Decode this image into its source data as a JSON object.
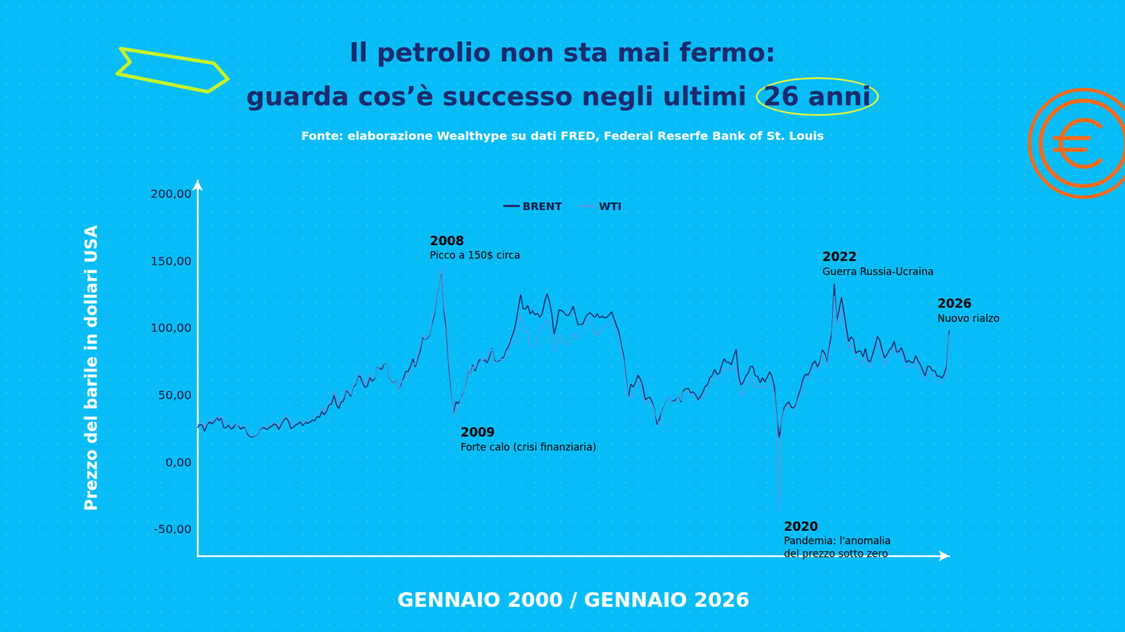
{
  "chart_data": {
    "type": "line",
    "title": [
      "Il petrolio non sta mai fermo:",
      "guarda cos’è successo negli ultimi 26 anni"
    ],
    "subtitle": "Fonte: elaborazione Wealthype su dati FRED, Federal Reserfe Bank of St. Louis",
    "x_label": "GENNAIO 2000 / GENNAIO 2026",
    "y_label": "Prezzo del barile in dollari USA",
    "x": [
      "2000-01",
      "2000-02",
      "2000-03",
      "2000-04",
      "2000-05",
      "2000-06",
      "2000-07",
      "2000-08",
      "2000-09",
      "2000-10",
      "2000-11",
      "2000-12",
      "2001-01",
      "2001-02",
      "2001-03",
      "2001-04",
      "2001-05",
      "2001-06",
      "2001-07",
      "2001-08",
      "2001-09",
      "2001-10",
      "2001-11",
      "2001-12",
      "2002-01",
      "2002-02",
      "2002-03",
      "2002-04",
      "2002-05",
      "2002-06",
      "2002-07",
      "2002-08",
      "2002-09",
      "2002-10",
      "2002-11",
      "2002-12",
      "2003-01",
      "2003-02",
      "2003-03",
      "2003-04",
      "2003-05",
      "2003-06",
      "2003-07",
      "2003-08",
      "2003-09",
      "2003-10",
      "2003-11",
      "2003-12",
      "2004-01",
      "2004-02",
      "2004-03",
      "2004-04",
      "2004-05",
      "2004-06",
      "2004-07",
      "2004-08",
      "2004-09",
      "2004-10",
      "2004-11",
      "2004-12",
      "2005-01",
      "2005-02",
      "2005-03",
      "2005-04",
      "2005-05",
      "2005-06",
      "2005-07",
      "2005-08",
      "2005-09",
      "2005-10",
      "2005-11",
      "2005-12",
      "2006-01",
      "2006-02",
      "2006-03",
      "2006-04",
      "2006-05",
      "2006-06",
      "2006-07",
      "2006-08",
      "2006-09",
      "2006-10",
      "2006-11",
      "2006-12",
      "2007-01",
      "2007-02",
      "2007-03",
      "2007-04",
      "2007-05",
      "2007-06",
      "2007-07",
      "2007-08",
      "2007-09",
      "2007-10",
      "2007-11",
      "2007-12",
      "2008-01",
      "2008-02",
      "2008-03",
      "2008-04",
      "2008-05",
      "2008-06",
      "2008-07",
      "2008-08",
      "2008-09",
      "2008-10",
      "2008-11",
      "2008-12",
      "2009-01",
      "2009-02",
      "2009-03",
      "2009-04",
      "2009-05",
      "2009-06",
      "2009-07",
      "2009-08",
      "2009-09",
      "2009-10",
      "2009-11",
      "2009-12",
      "2010-01",
      "2010-02",
      "2010-03",
      "2010-04",
      "2010-05",
      "2010-06",
      "2010-07",
      "2010-08",
      "2010-09",
      "2010-10",
      "2010-11",
      "2010-12",
      "2011-01",
      "2011-02",
      "2011-03",
      "2011-04",
      "2011-05",
      "2011-06",
      "2011-07",
      "2011-08",
      "2011-09",
      "2011-10",
      "2011-11",
      "2011-12",
      "2012-01",
      "2012-02",
      "2012-03",
      "2012-04",
      "2012-05",
      "2012-06",
      "2012-07",
      "2012-08",
      "2012-09",
      "2012-10",
      "2012-11",
      "2012-12",
      "2013-01",
      "2013-02",
      "2013-03",
      "2013-04",
      "2013-05",
      "2013-06",
      "2013-07",
      "2013-08",
      "2013-09",
      "2013-10",
      "2013-11",
      "2013-12",
      "2014-01",
      "2014-02",
      "2014-03",
      "2014-04",
      "2014-05",
      "2014-06",
      "2014-07",
      "2014-08",
      "2014-09",
      "2014-10",
      "2014-11",
      "2014-12",
      "2015-01",
      "2015-02",
      "2015-03",
      "2015-04",
      "2015-05",
      "2015-06",
      "2015-07",
      "2015-08",
      "2015-09",
      "2015-10",
      "2015-11",
      "2015-12",
      "2016-01",
      "2016-02",
      "2016-03",
      "2016-04",
      "2016-05",
      "2016-06",
      "2016-07",
      "2016-08",
      "2016-09",
      "2016-10",
      "2016-11",
      "2016-12",
      "2017-01",
      "2017-02",
      "2017-03",
      "2017-04",
      "2017-05",
      "2017-06",
      "2017-07",
      "2017-08",
      "2017-09",
      "2017-10",
      "2017-11",
      "2017-12",
      "2018-01",
      "2018-02",
      "2018-03",
      "2018-04",
      "2018-05",
      "2018-06",
      "2018-07",
      "2018-08",
      "2018-09",
      "2018-10",
      "2018-11",
      "2018-12",
      "2019-01",
      "2019-02",
      "2019-03",
      "2019-04",
      "2019-05",
      "2019-06",
      "2019-07",
      "2019-08",
      "2019-09",
      "2019-10",
      "2019-11",
      "2019-12",
      "2020-01",
      "2020-02",
      "2020-03",
      "2020-04",
      "2020-05",
      "2020-06",
      "2020-07",
      "2020-08",
      "2020-09",
      "2020-10",
      "2020-11",
      "2020-12",
      "2021-01",
      "2021-02",
      "2021-03",
      "2021-04",
      "2021-05",
      "2021-06",
      "2021-07",
      "2021-08",
      "2021-09",
      "2021-10",
      "2021-11",
      "2021-12",
      "2022-01",
      "2022-02",
      "2022-03",
      "2022-04",
      "2022-05",
      "2022-06",
      "2022-07",
      "2022-08",
      "2022-09",
      "2022-10",
      "2022-11",
      "2022-12",
      "2023-01",
      "2023-02",
      "2023-03",
      "2023-04",
      "2023-05",
      "2023-06",
      "2023-07",
      "2023-08",
      "2023-09",
      "2023-10",
      "2023-11",
      "2023-12",
      "2024-01",
      "2024-02",
      "2024-03",
      "2024-04",
      "2024-05",
      "2024-06",
      "2024-07",
      "2024-08",
      "2024-09",
      "2024-10",
      "2024-11",
      "2024-12",
      "2025-01",
      "2025-02",
      "2025-03",
      "2025-04",
      "2025-05",
      "2025-06",
      "2025-07",
      "2025-08",
      "2025-09",
      "2025-10",
      "2025-11",
      "2025-12",
      "2026-01",
      "2026-02",
      "2026-03"
    ],
    "series": [
      {
        "name": "BRENT",
        "color": "#1d3173",
        "values": [
          25.5,
          27.8,
          27.5,
          22.8,
          27.6,
          29.8,
          28.5,
          30.0,
          33.1,
          30.9,
          32.6,
          25.5,
          25.6,
          27.5,
          24.5,
          25.6,
          28.4,
          27.7,
          24.5,
          25.7,
          25.6,
          20.5,
          18.8,
          18.7,
          19.4,
          20.3,
          23.7,
          25.7,
          25.4,
          24.1,
          25.7,
          26.6,
          28.4,
          27.5,
          24.3,
          28.0,
          31.2,
          32.8,
          30.6,
          25.0,
          25.8,
          27.6,
          28.4,
          29.8,
          27.1,
          29.6,
          28.8,
          29.8,
          31.2,
          30.9,
          33.8,
          33.4,
          37.6,
          35.2,
          38.2,
          42.7,
          43.2,
          49.8,
          43.1,
          39.7,
          44.5,
          45.5,
          53.1,
          51.9,
          49.0,
          55.6,
          57.5,
          63.9,
          63.8,
          58.9,
          55.5,
          56.7,
          63.0,
          60.2,
          62.1,
          70.3,
          70.0,
          68.9,
          73.7,
          73.2,
          63.0,
          59.8,
          59.1,
          62.0,
          54.5,
          57.8,
          62.1,
          67.5,
          67.5,
          71.3,
          77.0,
          70.8,
          77.1,
          82.3,
          92.5,
          91.5,
          92.2,
          94.8,
          103.3,
          110.4,
          124.6,
          133.5,
          143.0,
          113.0,
          98.1,
          72.3,
          53.2,
          36.0,
          44.9,
          43.4,
          47.7,
          50.8,
          57.9,
          68.6,
          64.9,
          72.5,
          67.7,
          73.2,
          77.0,
          74.7,
          76.2,
          73.8,
          78.8,
          84.8,
          75.9,
          74.8,
          75.6,
          77.1,
          78.2,
          83.5,
          86.1,
          92.0,
          96.5,
          103.7,
          114.6,
          125.0,
          114.5,
          113.9,
          116.7,
          110.4,
          112.8,
          109.6,
          110.8,
          107.9,
          110.7,
          119.3,
          125.5,
          119.8,
          110.3,
          95.2,
          102.6,
          113.4,
          113.0,
          111.5,
          109.5,
          109.2,
          112.3,
          116.1,
          108.5,
          102.3,
          102.6,
          102.9,
          107.4,
          110.3,
          111.2,
          109.5,
          107.8,
          110.6,
          107.4,
          108.8,
          107.4,
          107.8,
          109.7,
          111.9,
          106.8,
          101.6,
          97.1,
          87.4,
          79.4,
          62.3,
          47.8,
          58.1,
          55.9,
          59.5,
          64.6,
          61.7,
          56.5,
          46.5,
          47.6,
          48.4,
          44.3,
          38.0,
          28.0,
          32.2,
          38.2,
          41.6,
          46.7,
          48.8,
          44.7,
          45.7,
          46.6,
          49.5,
          44.7,
          53.3,
          54.6,
          54.9,
          51.6,
          52.3,
          50.3,
          46.4,
          48.5,
          51.7,
          56.2,
          57.5,
          62.7,
          64.4,
          69.1,
          65.3,
          66.0,
          72.1,
          76.9,
          74.4,
          74.3,
          72.5,
          78.9,
          84.0,
          64.8,
          57.4,
          59.4,
          64.0,
          66.1,
          71.2,
          71.3,
          64.2,
          63.9,
          59.0,
          62.8,
          59.7,
          63.2,
          67.3,
          63.7,
          55.7,
          32.0,
          18.4,
          29.4,
          40.3,
          43.2,
          44.7,
          40.9,
          40.2,
          42.7,
          49.9,
          54.8,
          62.3,
          65.4,
          64.8,
          68.3,
          73.4,
          75.2,
          70.8,
          74.5,
          83.5,
          81.1,
          74.2,
          86.5,
          97.1,
          133.0,
          104.6,
          113.3,
          122.7,
          111.9,
          100.5,
          89.8,
          93.3,
          91.4,
          80.9,
          82.5,
          82.6,
          78.4,
          84.6,
          75.5,
          74.8,
          80.1,
          86.2,
          93.7,
          90.6,
          83.2,
          77.6,
          80.1,
          83.5,
          85.4,
          90.1,
          81.8,
          82.6,
          85.2,
          80.4,
          74.3,
          75.6,
          74.4,
          73.8,
          79.3,
          75.4,
          72.5,
          68.0,
          64.2,
          71.4,
          71.0,
          68.0,
          68.0,
          64.0,
          64.0,
          62.5,
          66.0,
          72.0,
          98.0
        ]
      },
      {
        "name": "WTI",
        "color": "#4a9fe8",
        "values": [
          27.3,
          29.4,
          29.9,
          25.7,
          28.8,
          31.8,
          29.8,
          31.2,
          33.9,
          33.1,
          34.4,
          28.5,
          29.6,
          29.6,
          27.2,
          27.4,
          28.6,
          27.6,
          26.4,
          27.4,
          26.2,
          22.2,
          19.6,
          19.4,
          19.7,
          20.7,
          24.4,
          26.3,
          27.0,
          25.5,
          26.9,
          28.4,
          29.7,
          28.9,
          26.3,
          29.4,
          32.9,
          35.9,
          33.6,
          28.3,
          28.1,
          30.7,
          30.8,
          31.6,
          28.3,
          30.3,
          31.1,
          32.1,
          34.3,
          34.7,
          36.8,
          36.7,
          40.3,
          38.0,
          40.7,
          44.9,
          46.0,
          53.1,
          48.5,
          43.3,
          46.8,
          48.0,
          54.3,
          53.0,
          50.0,
          56.5,
          58.7,
          65.0,
          65.6,
          62.3,
          58.3,
          59.4,
          65.5,
          61.6,
          62.9,
          69.7,
          70.9,
          71.0,
          74.4,
          73.0,
          63.8,
          58.9,
          59.4,
          62.0,
          54.6,
          59.3,
          60.4,
          64.0,
          63.5,
          67.5,
          74.1,
          72.4,
          79.9,
          85.8,
          94.8,
          91.7,
          93.0,
          95.4,
          105.5,
          112.6,
          125.4,
          133.9,
          145.0,
          116.7,
          104.1,
          76.6,
          57.3,
          33.0,
          41.7,
          39.1,
          47.9,
          49.7,
          59.0,
          69.6,
          64.2,
          71.1,
          69.4,
          75.7,
          78.0,
          74.5,
          78.3,
          76.4,
          81.2,
          84.3,
          73.7,
          75.3,
          76.3,
          76.6,
          75.2,
          81.9,
          84.3,
          89.2,
          89.2,
          88.6,
          102.9,
          109.5,
          100.9,
          96.3,
          97.3,
          86.3,
          85.5,
          86.3,
          97.2,
          98.6,
          100.3,
          102.2,
          106.2,
          103.3,
          94.7,
          82.3,
          87.9,
          94.1,
          94.5,
          89.5,
          86.5,
          87.9,
          94.8,
          95.3,
          92.9,
          92.0,
          94.5,
          95.8,
          104.6,
          106.6,
          106.3,
          100.5,
          93.9,
          97.6,
          94.6,
          100.8,
          100.8,
          102.1,
          102.2,
          105.8,
          103.6,
          96.5,
          93.2,
          84.4,
          75.8,
          59.3,
          47.2,
          50.6,
          47.8,
          54.5,
          59.3,
          59.8,
          50.9,
          42.9,
          45.5,
          46.2,
          42.4,
          37.2,
          31.7,
          26.0,
          37.5,
          40.8,
          46.7,
          48.8,
          44.7,
          44.7,
          45.2,
          49.8,
          45.7,
          52.0,
          52.5,
          53.5,
          49.3,
          51.1,
          48.5,
          45.2,
          46.6,
          48.0,
          49.8,
          51.6,
          56.6,
          57.9,
          63.7,
          62.2,
          62.7,
          66.3,
          70.0,
          67.9,
          71.0,
          68.1,
          70.2,
          70.8,
          57.0,
          49.5,
          51.4,
          55.0,
          58.2,
          63.9,
          60.8,
          54.7,
          57.4,
          54.8,
          57.0,
          54.0,
          57.0,
          59.9,
          57.5,
          50.5,
          29.2,
          -37.0,
          28.5,
          38.3,
          40.7,
          42.3,
          39.6,
          39.4,
          41.4,
          47.1,
          52.0,
          59.0,
          62.3,
          61.7,
          65.2,
          71.4,
          72.5,
          67.7,
          71.6,
          81.5,
          79.2,
          71.7,
          83.2,
          91.6,
          124.0,
          101.8,
          109.3,
          114.8,
          101.6,
          93.7,
          84.3,
          87.6,
          84.4,
          76.4,
          78.1,
          76.8,
          73.3,
          79.4,
          71.6,
          70.3,
          76.1,
          81.4,
          89.4,
          85.6,
          77.7,
          71.9,
          74.2,
          77.3,
          81.3,
          85.4,
          80.0,
          79.8,
          81.8,
          76.7,
          70.2,
          71.9,
          69.7,
          70.1,
          75.1,
          71.5,
          68.2,
          63.5,
          61.0,
          68.2,
          67.4,
          64.0,
          63.5,
          60.0,
          60.0,
          58.0,
          62.0,
          67.0,
          95.0
        ]
      }
    ],
    "ylim": [
      -70,
      210
    ],
    "yticks": [
      {
        "value": -50,
        "label": "-50,00"
      },
      {
        "value": 0,
        "label": "0,00"
      },
      {
        "value": 50,
        "label": "50,00"
      },
      {
        "value": 100,
        "label": "100,00"
      },
      {
        "value": 150,
        "label": "150,00"
      },
      {
        "value": 200,
        "label": "200,00"
      }
    ],
    "grid": false,
    "legend": "top",
    "tick_labels": "y",
    "annotations": [
      {
        "x": "2008-07",
        "title": "2008",
        "text": "Picco a 150$ circa"
      },
      {
        "x": "2009-01",
        "title": "2009",
        "text": "Forte calo (crisi finanziaria)"
      },
      {
        "x": "2020-04",
        "title": "2020",
        "text": "Pandemia: l'anomalia\ndel prezzo sotto zero"
      },
      {
        "x": "2022-03",
        "title": "2022",
        "text": "Guerra Russia-Ucraina"
      },
      {
        "x": "2026-03",
        "title": "2026",
        "text": "Nuovo rialzo"
      }
    ]
  }
}
